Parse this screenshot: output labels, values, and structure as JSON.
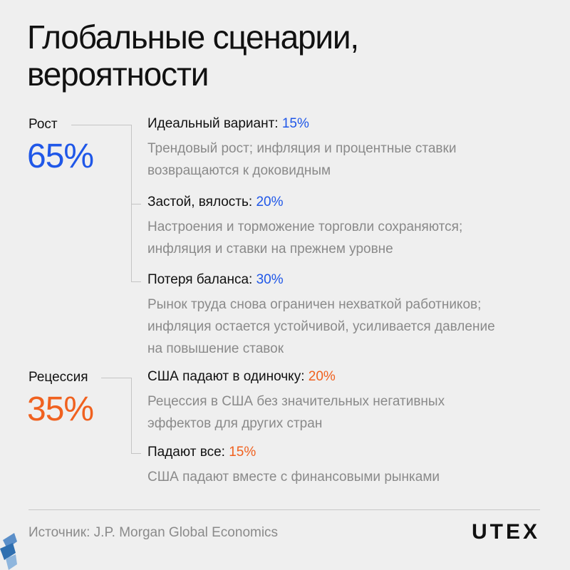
{
  "title": {
    "line1": "Глобальные сценарии,",
    "line2": "вероятности"
  },
  "colors": {
    "growth": "#1f57e8",
    "recession": "#f0611f",
    "line": "#c4c4c4"
  },
  "groups": [
    {
      "label": "Рост",
      "percent": "65%",
      "items": [
        {
          "name": "Идеальный вариант:",
          "value": "15%",
          "desc": [
            "Трендовый рост; инфляция и процентные ставки",
            "возвращаются к доковидным"
          ]
        },
        {
          "name": "Застой, вялость:",
          "value": "20%",
          "desc": [
            "Настроения и торможение торговли сохраняются;",
            "инфляция и ставки на прежнем уровне"
          ]
        },
        {
          "name": "Потеря баланса:",
          "value": "30%",
          "desc": [
            "Рынок труда снова ограничен нехваткой работников;",
            "инфляция остается устойчивой, усиливается давление",
            "на повышение ставок"
          ]
        }
      ]
    },
    {
      "label": "Рецессия",
      "percent": "35%",
      "items": [
        {
          "name": "США падают в одиночку:",
          "value": "20%",
          "desc": [
            "Рецессия в США без значительных негативных",
            "эффектов для других стран"
          ]
        },
        {
          "name": "Падают все:",
          "value": "15%",
          "desc": [
            "США падают вместе с финансовыми рынками"
          ]
        }
      ]
    }
  ],
  "footer": {
    "source": "Источник: J.P. Morgan Global Economics",
    "logo": "UTEX"
  }
}
